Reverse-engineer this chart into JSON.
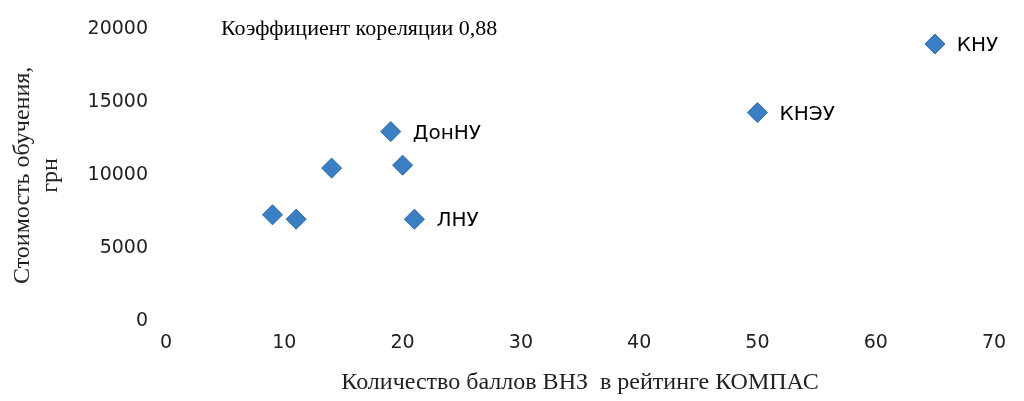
{
  "chart_data": {
    "type": "scatter",
    "xlabel": "Количество баллов ВНЗ  в рейтинге КОМПАС",
    "ylabel": "Стоимость обучения, грн",
    "x": [
      9,
      11,
      14,
      19,
      20,
      21,
      50,
      65
    ],
    "series": [
      {
        "color": "#3a7fc4",
        "values": [
          7300,
          7000,
          10500,
          13000,
          10700,
          7000,
          14300,
          19000
        ]
      }
    ],
    "marker": "diamond",
    "xlim": [
      0,
      70
    ],
    "xticks": [
      0,
      10,
      20,
      30,
      40,
      50,
      60,
      70
    ],
    "ylim": [
      0,
      20000
    ],
    "yticks": [
      0,
      5000,
      10000,
      15000,
      20000
    ],
    "grid": false,
    "legend": false,
    "annotations": [
      "Коэффициент кореляции 0,88",
      {
        "text": "ДонНУ",
        "x": 19,
        "y": 13000
      },
      {
        "text": "ЛНУ",
        "x": 21,
        "y": 7000
      },
      {
        "text": "КНЭУ",
        "x": 50,
        "y": 14300
      },
      {
        "text": "КНУ",
        "x": 65,
        "y": 19000
      }
    ]
  }
}
